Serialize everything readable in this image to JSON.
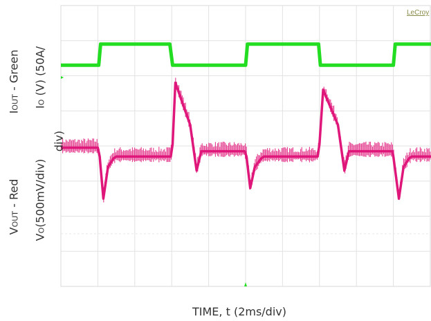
{
  "instrument": "LeCroy",
  "chart_data": {
    "type": "line",
    "title": "",
    "xlabel": "TIME, t (2ms/div)",
    "grid": true,
    "grid_divisions": {
      "x": 10,
      "y": 8
    },
    "x_div_unit": "ms",
    "x_div_size": 2,
    "series": [
      {
        "name": "I_OUT - Green",
        "axis_label": "I_O (V) (50A/div)",
        "color": "#22dd22",
        "x": [
          0,
          0.5,
          2.05,
          2.15,
          5.9,
          6.05,
          10.0,
          10.1,
          13.95,
          14.05,
          18.0,
          18.1,
          20.4
        ],
        "y": [
          2.3,
          2.3,
          2.3,
          2.9,
          2.9,
          2.3,
          2.3,
          2.9,
          2.9,
          2.3,
          2.3,
          2.9,
          2.9
        ]
      },
      {
        "name": "V_OUT - Red",
        "axis_label": "V_O(500mV/div)",
        "color": "#e0177a",
        "x": [
          0,
          2.0,
          2.1,
          2.3,
          2.55,
          2.85,
          3.0,
          5.95,
          6.05,
          6.2,
          7.0,
          7.35,
          7.6,
          9.95,
          10.05,
          10.25,
          10.5,
          10.85,
          11.0,
          13.9,
          14.0,
          14.2,
          15.0,
          15.35,
          15.6,
          17.95,
          18.0,
          18.3,
          18.55,
          18.85,
          19.0,
          20.4
        ],
        "y": [
          -0.05,
          -0.05,
          -0.3,
          -1.5,
          -0.6,
          -0.35,
          -0.3,
          -0.3,
          0.05,
          1.8,
          0.6,
          -0.7,
          -0.15,
          -0.15,
          -0.3,
          -1.2,
          -0.6,
          -0.35,
          -0.3,
          -0.3,
          0.05,
          1.6,
          0.6,
          -0.7,
          -0.15,
          -0.15,
          -0.3,
          -1.5,
          -0.6,
          -0.35,
          -0.3,
          -0.3
        ]
      }
    ]
  }
}
